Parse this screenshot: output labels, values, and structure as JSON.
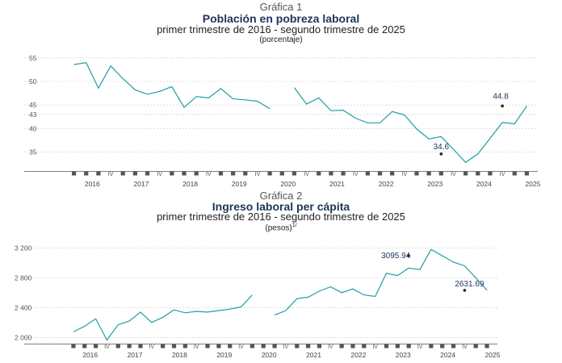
{
  "chart_data": [
    {
      "type": "line",
      "kicker": "Gráfica 1",
      "title": "Población en pobreza laboral",
      "subtitle": "primer trimestre de 2016 - segundo trimestre de 2025",
      "unit": "(porcentaje)",
      "y_ticks": [
        "55",
        "50",
        "45",
        "43",
        "40",
        "35"
      ],
      "ylim": [
        32,
        56
      ],
      "x_years": [
        "2016",
        "2017",
        "2018",
        "2019",
        "2020",
        "2021",
        "2022",
        "2023",
        "2024",
        "2025"
      ],
      "quarter_marks": [
        "I",
        "II",
        "III",
        "IV"
      ],
      "segments": [
        [
          53.6,
          54.0,
          48.6,
          53.3,
          50.6,
          48.2,
          47.3,
          47.9,
          48.9,
          44.5,
          46.8,
          46.5,
          48.5,
          46.3,
          46.1,
          45.8,
          44.2
        ],
        [
          48.7,
          45.2,
          46.5,
          43.8,
          43.9,
          42.2,
          41.2,
          41.2,
          43.6,
          42.9,
          39.9,
          37.8,
          38.3,
          35.6,
          32.8,
          34.6,
          37.9,
          41.3,
          41.0,
          44.8
        ]
      ],
      "labels": [
        {
          "text": "34.6",
          "value": 34.6,
          "index": 30
        },
        {
          "text": "44.8",
          "value": 44.8,
          "index": 35
        }
      ],
      "color": "#1f9ea3",
      "grid": true
    },
    {
      "type": "line",
      "kicker": "Gráfica 2",
      "title": "Ingreso laboral per cápita",
      "subtitle": "primer trimestre de 2016 - segundo trimestre de 2025",
      "unit": "(pesos)",
      "unit_note": "1/",
      "y_ticks": [
        "3 200",
        "2 800",
        "2 400",
        "2 000"
      ],
      "ylim": [
        1960,
        3280
      ],
      "x_years": [
        "2016",
        "2017",
        "2018",
        "2019",
        "2020",
        "2021",
        "2022",
        "2023",
        "2024",
        "2025"
      ],
      "quarter_marks": [
        "I",
        "II",
        "III",
        "IV"
      ],
      "segments": [
        [
          2075,
          2150,
          2250,
          1965,
          2170,
          2220,
          2340,
          2200,
          2270,
          2370,
          2330,
          2350,
          2340,
          2360,
          2380,
          2410,
          2570
        ],
        [
          2300,
          2360,
          2520,
          2540,
          2620,
          2680,
          2600,
          2650,
          2570,
          2550,
          2860,
          2830,
          2930,
          2910,
          3180,
          3095.94,
          3010,
          2960,
          2800,
          2631.69
        ]
      ],
      "labels": [
        {
          "text": "3095.94",
          "value": 3095.94,
          "index": 30
        },
        {
          "text": "2631.69",
          "value": 2631.69,
          "index": 35
        }
      ],
      "color": "#1f9ea3",
      "grid": true
    }
  ]
}
